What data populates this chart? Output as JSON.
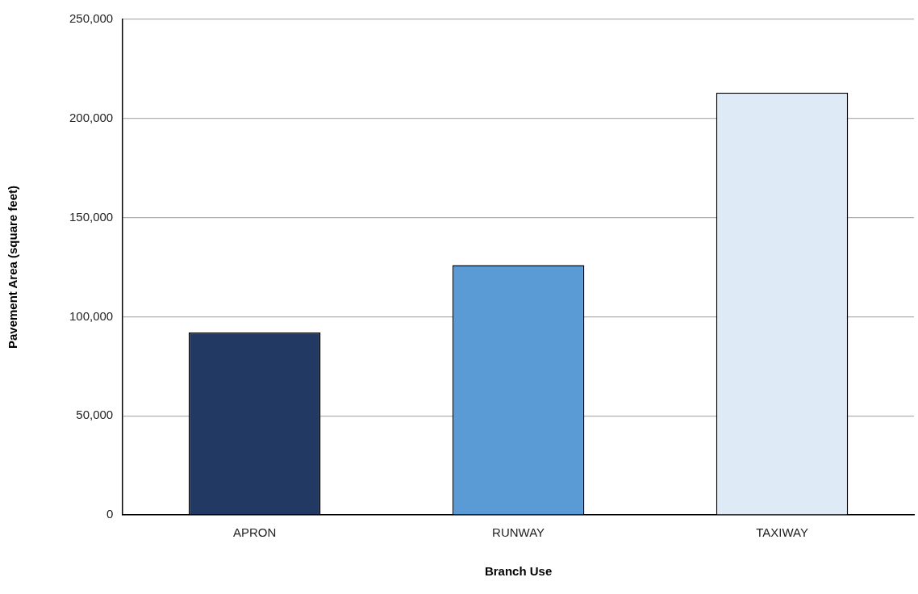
{
  "chart_data": {
    "type": "bar",
    "xlabel": "Branch Use",
    "ylabel": "Pavement Area (square feet)",
    "categories": [
      "APRON",
      "RUNWAY",
      "TAXIWAY"
    ],
    "values": [
      92000,
      126000,
      213000
    ],
    "colors": [
      "#223a63",
      "#5b9bd5",
      "#deeaf6"
    ],
    "ylim": [
      0,
      250000
    ],
    "yticks": [
      {
        "value": 0,
        "label": "0"
      },
      {
        "value": 50000,
        "label": "50,000"
      },
      {
        "value": 100000,
        "label": "100,000"
      },
      {
        "value": 150000,
        "label": "150,000"
      },
      {
        "value": 200000,
        "label": "200,000"
      },
      {
        "value": 250000,
        "label": "250,000"
      }
    ],
    "grid": "y",
    "legend": false
  }
}
